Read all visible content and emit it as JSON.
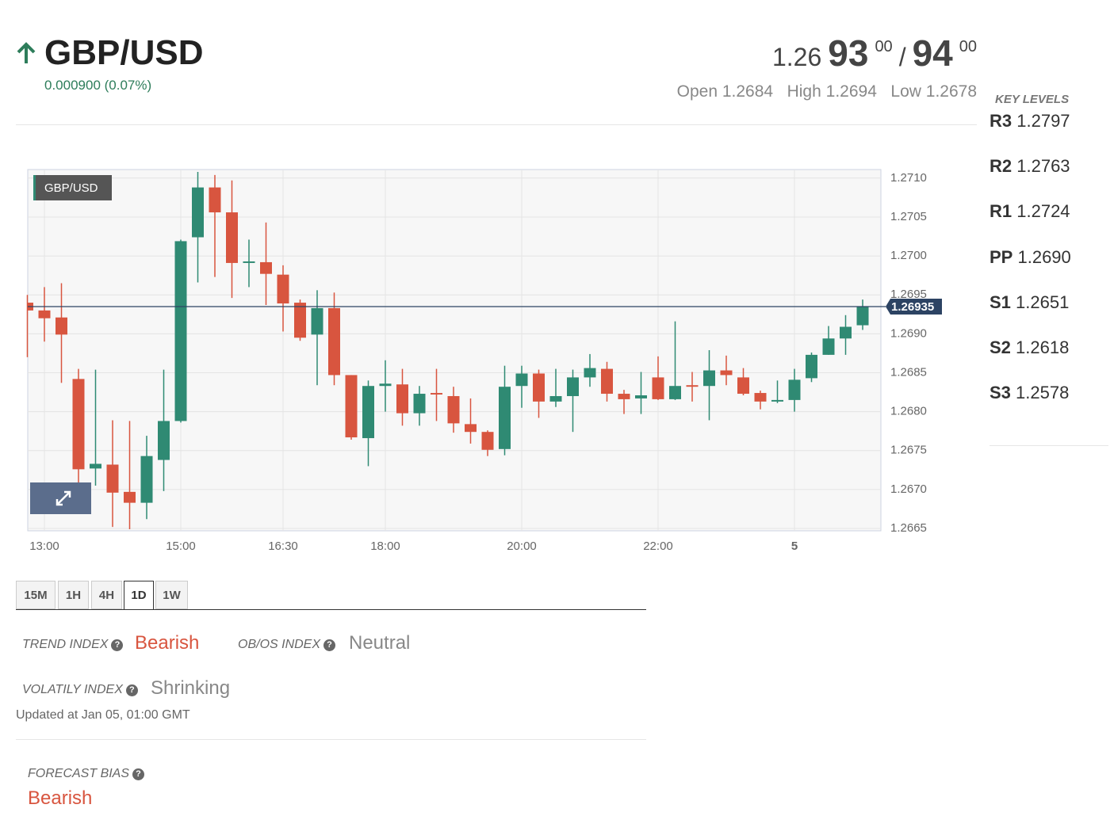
{
  "header": {
    "symbol": "GBP/USD",
    "change": "0.000900 (0.07%)",
    "price_prefix": "1.26",
    "bid_big": "93",
    "bid_small": "00",
    "separator": "/",
    "ask_big": "94",
    "ask_small": "00",
    "open_label": "Open",
    "open": "1.2684",
    "high_label": "High",
    "high": "1.2694",
    "low_label": "Low",
    "low": "1.2678"
  },
  "key_levels": {
    "title": "KEY LEVELS",
    "levels": [
      {
        "name": "R3",
        "value": "1.2797"
      },
      {
        "name": "R2",
        "value": "1.2763"
      },
      {
        "name": "R1",
        "value": "1.2724"
      },
      {
        "name": "PP",
        "value": "1.2690"
      },
      {
        "name": "S1",
        "value": "1.2651"
      },
      {
        "name": "S2",
        "value": "1.2618"
      },
      {
        "name": "S3",
        "value": "1.2578"
      }
    ]
  },
  "chart_data": {
    "type": "candlestick",
    "series_label": "GBP/USD",
    "current_price": 1.26935,
    "categories": [
      null,
      "13:00",
      null,
      null,
      null,
      null,
      null,
      null,
      null,
      "15:00",
      null,
      null,
      null,
      null,
      null,
      "16:30",
      null,
      null,
      null,
      null,
      null,
      "18:00",
      null,
      null,
      null,
      null,
      null,
      null,
      null,
      "20:00",
      null,
      null,
      null,
      null,
      null,
      null,
      null,
      "22:00",
      null,
      null,
      null,
      null,
      null,
      null,
      null,
      "5",
      null,
      null,
      null,
      null
    ],
    "open": [
      1.2694,
      1.2693,
      1.26921,
      1.26842,
      1.26727,
      1.26732,
      1.26697,
      1.26683,
      1.26738,
      1.26788,
      1.27024,
      1.27088,
      1.27056,
      1.26991,
      1.26992,
      1.26976,
      1.2694,
      1.26899,
      1.26933,
      1.26847,
      1.26766,
      1.26833,
      1.26835,
      1.26798,
      1.26824,
      1.2682,
      1.26784,
      1.26774,
      1.26752,
      1.26833,
      1.26849,
      1.26813,
      1.2682,
      1.26844,
      1.26855,
      1.26823,
      1.26817,
      1.26844,
      1.26816,
      1.26834,
      1.26833,
      1.26853,
      1.26844,
      1.26824,
      1.26813,
      1.26815,
      1.26843,
      1.26873,
      1.26894,
      1.26911
    ],
    "high": [
      1.2695,
      1.2696,
      1.26965,
      1.26855,
      1.26854,
      1.26789,
      1.26788,
      1.26769,
      1.26854,
      1.27021,
      1.27108,
      1.27104,
      1.27097,
      1.27021,
      1.27043,
      1.26988,
      1.26944,
      1.26956,
      1.26953,
      1.26847,
      1.2684,
      1.26866,
      1.26855,
      1.26833,
      1.26855,
      1.26832,
      1.26817,
      1.26776,
      1.26859,
      1.26859,
      1.26854,
      1.26855,
      1.26854,
      1.26874,
      1.26864,
      1.26828,
      1.26851,
      1.26871,
      1.26916,
      1.26851,
      1.26879,
      1.26872,
      1.26856,
      1.26827,
      1.2684,
      1.26855,
      1.26876,
      1.2691,
      1.26924,
      1.26944
    ],
    "low": [
      1.2687,
      1.2689,
      1.26837,
      1.26708,
      1.26705,
      1.26652,
      1.26649,
      1.26662,
      1.26698,
      1.26786,
      1.26966,
      1.26973,
      1.26946,
      1.2696,
      1.26937,
      1.26903,
      1.26891,
      1.26834,
      1.26834,
      1.26764,
      1.2673,
      1.268,
      1.26782,
      1.26782,
      1.26788,
      1.26773,
      1.26759,
      1.26743,
      1.26744,
      1.26805,
      1.26792,
      1.26806,
      1.26774,
      1.26832,
      1.26813,
      1.26797,
      1.26797,
      1.26815,
      1.26815,
      1.26813,
      1.26789,
      1.26834,
      1.26821,
      1.26803,
      1.26811,
      1.268,
      1.26838,
      1.26873,
      1.26873,
      1.26905
    ],
    "close": [
      1.2693,
      1.2692,
      1.26899,
      1.26726,
      1.26733,
      1.26696,
      1.26683,
      1.26743,
      1.26788,
      1.27019,
      1.27088,
      1.27056,
      1.26991,
      1.26993,
      1.26977,
      1.26939,
      1.26895,
      1.26933,
      1.26847,
      1.26767,
      1.26833,
      1.26836,
      1.26798,
      1.26823,
      1.26822,
      1.26785,
      1.26774,
      1.26751,
      1.26832,
      1.26849,
      1.26813,
      1.2682,
      1.26844,
      1.26856,
      1.26823,
      1.26816,
      1.26821,
      1.26816,
      1.26833,
      1.26832,
      1.26853,
      1.26847,
      1.26823,
      1.26813,
      1.26815,
      1.26841,
      1.26873,
      1.26894,
      1.26909,
      1.26935
    ],
    "up_color": "#2f8a73",
    "down_color": "#d8553f",
    "ylim": [
      1.26647,
      1.27111
    ],
    "yticks": [
      1.2665,
      {
        "value": 1.267,
        "label": "1.2670"
      },
      1.2675,
      {
        "value": 1.268,
        "label": "1.2680"
      },
      1.2685,
      {
        "value": 1.269,
        "label": "1.2690"
      },
      1.2695,
      {
        "value": 1.27,
        "label": "1.2700"
      },
      1.2705,
      {
        "value": 1.271,
        "label": "1.2710"
      }
    ],
    "grid": true
  },
  "timeframes": [
    "15M",
    "1H",
    "4H",
    "1D",
    "1W"
  ],
  "indices": {
    "trend_label": "TREND INDEX",
    "trend": "Bearish",
    "obos_label": "OB/OS INDEX",
    "obos": "Neutral",
    "vol_label": "VOLATILY INDEX",
    "vol": "Shrinking",
    "updated": "Updated at Jan 05, 01:00 GMT",
    "bias_label": "FORECAST BIAS",
    "bias": "Bearish"
  }
}
